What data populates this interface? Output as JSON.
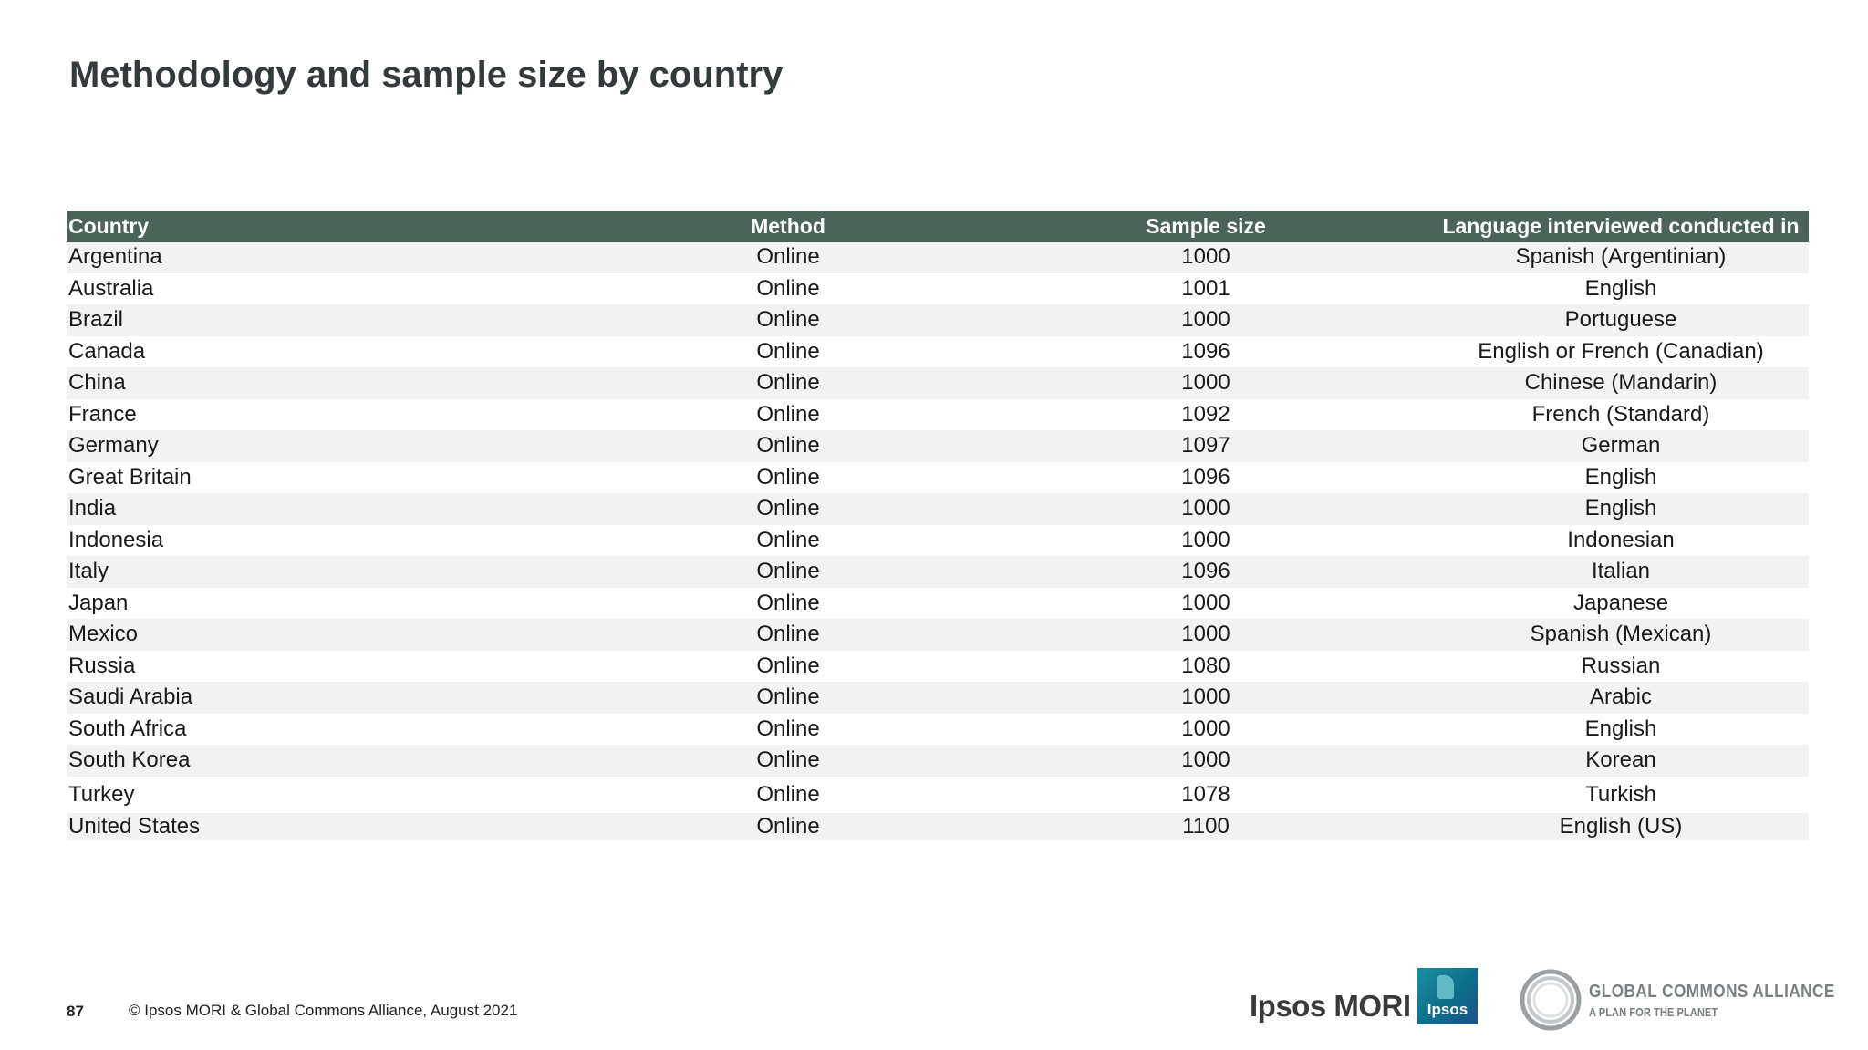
{
  "title": "Methodology and sample size by country",
  "table": {
    "headers": [
      "Country",
      "Method",
      "Sample size",
      "Language interviewed conducted in"
    ],
    "rows": [
      [
        "Argentina",
        "Online",
        "1000",
        "Spanish (Argentinian)"
      ],
      [
        "Australia",
        "Online",
        "1001",
        "English"
      ],
      [
        "Brazil",
        "Online",
        "1000",
        "Portuguese"
      ],
      [
        "Canada",
        "Online",
        "1096",
        "English or French (Canadian)"
      ],
      [
        "China",
        "Online",
        "1000",
        "Chinese (Mandarin)"
      ],
      [
        "France",
        "Online",
        "1092",
        "French (Standard)"
      ],
      [
        "Germany",
        "Online",
        "1097",
        "German"
      ],
      [
        "Great Britain",
        "Online",
        "1096",
        "English"
      ],
      [
        "India",
        "Online",
        "1000",
        "English"
      ],
      [
        "Indonesia",
        "Online",
        "1000",
        "Indonesian"
      ],
      [
        "Italy",
        "Online",
        "1096",
        "Italian"
      ],
      [
        "Japan",
        "Online",
        "1000",
        "Japanese"
      ],
      [
        "Mexico",
        "Online",
        "1000",
        "Spanish (Mexican)"
      ],
      [
        "Russia",
        "Online",
        "1080",
        "Russian"
      ],
      [
        "Saudi Arabia",
        "Online",
        "1000",
        "Arabic"
      ],
      [
        "South Africa",
        "Online",
        "1000",
        "English"
      ],
      [
        "South Korea",
        "Online",
        "1000",
        "Korean"
      ],
      [
        "Turkey",
        "Online",
        "1078",
        "Turkish"
      ],
      [
        "United States",
        "Online",
        "1100",
        "English (US)"
      ]
    ]
  },
  "footer": {
    "page_number": "87",
    "copyright": "© Ipsos MORI & Global Commons Alliance, August 2021"
  },
  "logos": {
    "ipsos_mori": "Ipsos MORI",
    "ipsos_badge": "Ipsos",
    "gca_title": "GLOBAL COMMONS ALLIANCE",
    "gca_tagline": "A PLAN FOR THE PLANET"
  },
  "colors": {
    "header_background": "#4b6358",
    "stripe": "#f2f2f2",
    "title_text": "#333a3b"
  }
}
